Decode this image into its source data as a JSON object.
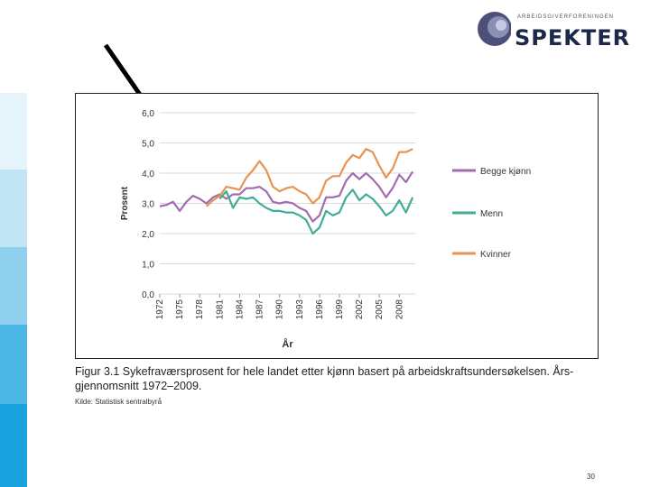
{
  "brand": {
    "name": "SPEKTER",
    "tagline": "ARBEIDSGIVERFORENINGEN"
  },
  "colors": {
    "both": "#a36bb0",
    "men": "#3fae94",
    "women": "#e8934f",
    "stripe": [
      "#e5f4fb",
      "#c1e5f5",
      "#8fd0ef",
      "#4cb7e6",
      "#1aa2df"
    ]
  },
  "caption": "Figur 3.1  Sykefraværsprosent for hele landet etter kjønn basert på arbeidskraftsundersøkelsen. Års-gjennomsnitt 1972–2009.",
  "source": "Kilde: Statistisk sentralbyrå",
  "page_number": "30",
  "chart_data": {
    "type": "line",
    "xlabel": "År",
    "ylabel": "Prosent",
    "ylim": [
      0,
      6
    ],
    "xlim": [
      1972,
      2009
    ],
    "yticks": [
      "0,0",
      "1,0",
      "2,0",
      "3,0",
      "4,0",
      "5,0",
      "6,0"
    ],
    "xticks": [
      "1972",
      "1975",
      "1978",
      "1981",
      "1984",
      "1987",
      "1990",
      "1993",
      "1996",
      "1999",
      "2002",
      "2005",
      "2008"
    ],
    "grid": true,
    "legend_position": "right",
    "series": [
      {
        "name": "Begge kjønn",
        "color": "#a36bb0",
        "points": [
          [
            1972,
            2.9
          ],
          [
            1973,
            2.95
          ],
          [
            1974,
            3.05
          ],
          [
            1975,
            2.75
          ],
          [
            1976,
            3.05
          ],
          [
            1977,
            3.25
          ],
          [
            1978,
            3.15
          ],
          [
            1979,
            3.0
          ],
          [
            1980,
            3.2
          ],
          [
            1981,
            3.3
          ],
          [
            1982,
            3.15
          ],
          [
            1983,
            3.3
          ],
          [
            1984,
            3.3
          ],
          [
            1985,
            3.5
          ],
          [
            1986,
            3.5
          ],
          [
            1987,
            3.55
          ],
          [
            1988,
            3.4
          ],
          [
            1989,
            3.05
          ],
          [
            1990,
            3.0
          ],
          [
            1991,
            3.05
          ],
          [
            1992,
            3.0
          ],
          [
            1993,
            2.85
          ],
          [
            1994,
            2.75
          ],
          [
            1995,
            2.4
          ],
          [
            1996,
            2.6
          ],
          [
            1997,
            3.2
          ],
          [
            1998,
            3.2
          ],
          [
            1999,
            3.25
          ],
          [
            2000,
            3.75
          ],
          [
            2001,
            4.0
          ],
          [
            2002,
            3.8
          ],
          [
            2003,
            4.0
          ],
          [
            2004,
            3.8
          ],
          [
            2005,
            3.55
          ],
          [
            2006,
            3.2
          ],
          [
            2007,
            3.5
          ],
          [
            2008,
            3.95
          ],
          [
            2009,
            3.7
          ],
          [
            2010,
            4.05
          ]
        ]
      },
      {
        "name": "Menn",
        "color": "#3fae94",
        "points": [
          [
            1981,
            3.15
          ],
          [
            1982,
            3.4
          ],
          [
            1983,
            2.85
          ],
          [
            1984,
            3.2
          ],
          [
            1985,
            3.15
          ],
          [
            1986,
            3.2
          ],
          [
            1987,
            3.0
          ],
          [
            1988,
            2.85
          ],
          [
            1989,
            2.75
          ],
          [
            1990,
            2.75
          ],
          [
            1991,
            2.7
          ],
          [
            1992,
            2.7
          ],
          [
            1993,
            2.6
          ],
          [
            1994,
            2.45
          ],
          [
            1995,
            2.0
          ],
          [
            1996,
            2.2
          ],
          [
            1997,
            2.75
          ],
          [
            1998,
            2.6
          ],
          [
            1999,
            2.7
          ],
          [
            2000,
            3.2
          ],
          [
            2001,
            3.45
          ],
          [
            2002,
            3.1
          ],
          [
            2003,
            3.3
          ],
          [
            2004,
            3.15
          ],
          [
            2005,
            2.9
          ],
          [
            2006,
            2.6
          ],
          [
            2007,
            2.75
          ],
          [
            2008,
            3.1
          ],
          [
            2009,
            2.7
          ],
          [
            2010,
            3.2
          ]
        ]
      },
      {
        "name": "Kvinner",
        "color": "#e8934f",
        "points": [
          [
            1979,
            2.9
          ],
          [
            1980,
            3.1
          ],
          [
            1981,
            3.25
          ],
          [
            1982,
            3.55
          ],
          [
            1983,
            3.5
          ],
          [
            1984,
            3.45
          ],
          [
            1985,
            3.85
          ],
          [
            1986,
            4.1
          ],
          [
            1987,
            4.4
          ],
          [
            1988,
            4.1
          ],
          [
            1989,
            3.55
          ],
          [
            1990,
            3.4
          ],
          [
            1991,
            3.5
          ],
          [
            1992,
            3.55
          ],
          [
            1993,
            3.4
          ],
          [
            1994,
            3.3
          ],
          [
            1995,
            3.0
          ],
          [
            1996,
            3.2
          ],
          [
            1997,
            3.75
          ],
          [
            1998,
            3.9
          ],
          [
            1999,
            3.9
          ],
          [
            2000,
            4.35
          ],
          [
            2001,
            4.6
          ],
          [
            2002,
            4.5
          ],
          [
            2003,
            4.8
          ],
          [
            2004,
            4.7
          ],
          [
            2005,
            4.25
          ],
          [
            2006,
            3.85
          ],
          [
            2007,
            4.15
          ],
          [
            2008,
            4.7
          ],
          [
            2009,
            4.7
          ],
          [
            2010,
            4.8
          ]
        ]
      }
    ]
  }
}
